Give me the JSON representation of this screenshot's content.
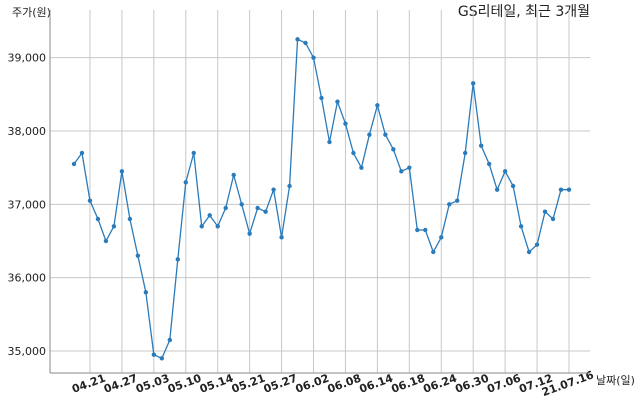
{
  "chart_data": {
    "type": "line",
    "title": "GS리테일, 최근 3개월",
    "y_label": "주가(원)",
    "x_label": "날짜(일)",
    "categories": [
      null,
      null,
      "04.21",
      null,
      null,
      null,
      "04.27",
      null,
      null,
      null,
      "05.03",
      null,
      null,
      null,
      "05.10",
      null,
      null,
      null,
      "05.14",
      null,
      null,
      null,
      "05.21",
      null,
      null,
      null,
      "05.27",
      null,
      null,
      null,
      "06.02",
      null,
      null,
      null,
      "06.08",
      null,
      null,
      null,
      "06.14",
      null,
      null,
      null,
      "06.18",
      null,
      null,
      null,
      "06.24",
      null,
      null,
      null,
      "06.30",
      null,
      null,
      null,
      "07.06",
      null,
      null,
      null,
      "07.12",
      null,
      null,
      null,
      "21.07.16"
    ],
    "series": [
      {
        "color": "#2b7bba",
        "values": [
          37550,
          37700,
          37050,
          36800,
          36500,
          36700,
          37450,
          36800,
          36300,
          35800,
          34950,
          34900,
          35150,
          36250,
          37300,
          37700,
          36700,
          36850,
          36700,
          36950,
          37400,
          37000,
          36600,
          36950,
          36900,
          37200,
          36550,
          37250,
          39250,
          39200,
          39000,
          38450,
          37850,
          38400,
          38100,
          37700,
          37500,
          37950,
          38350,
          37950,
          37750,
          37450,
          37500,
          36650,
          36650,
          36350,
          36550,
          37000,
          37050,
          37700,
          38650,
          37800,
          37550,
          37200,
          37450,
          37250,
          36700,
          36350,
          36450,
          36900,
          36800,
          37200,
          37200
        ]
      }
    ],
    "ylim": [
      34700,
      39650
    ],
    "yticks": [
      {
        "value": 35000,
        "label": "35,000"
      },
      {
        "value": 36000,
        "label": "36,000"
      },
      {
        "value": 37000,
        "label": "37,000"
      },
      {
        "value": 38000,
        "label": "38,000"
      },
      {
        "value": 39000,
        "label": "39,000"
      }
    ],
    "grid": true
  }
}
